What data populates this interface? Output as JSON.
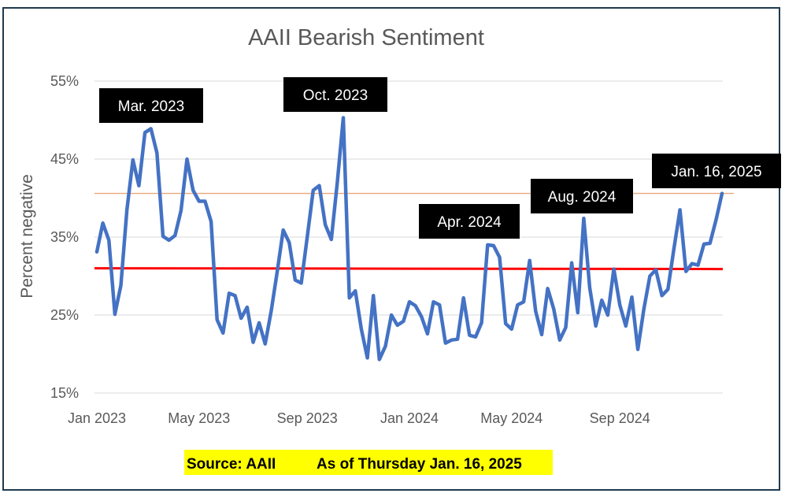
{
  "chart_data": {
    "type": "line",
    "title": "AAII Bearish Sentiment",
    "ylabel": "Percent negative",
    "xlabel": "",
    "ylim": [
      15,
      55
    ],
    "yticks": [
      15,
      25,
      35,
      45,
      55
    ],
    "ytick_labels": [
      "15%",
      "25%",
      "35%",
      "45%",
      "55%"
    ],
    "x_tick_labels": [
      "Jan 2023",
      "May 2023",
      "Sep 2023",
      "Jan 2024",
      "May 2024",
      "Sep 2024"
    ],
    "x_tick_index": [
      0,
      17,
      35,
      52,
      69,
      87
    ],
    "grid": "horizontal",
    "colors": {
      "series": "#4472c4",
      "average": "#ff0000",
      "reference": "#e8a87c",
      "callout_bg": "#000000",
      "source_bg": "#ffff00"
    },
    "series": [
      {
        "name": "AAII Bearish %",
        "values": [
          33.1,
          36.8,
          34.6,
          25.1,
          28.8,
          38.5,
          44.9,
          41.6,
          48.4,
          48.9,
          45.8,
          35.1,
          34.6,
          35.2,
          38.4,
          45.0,
          41.0,
          39.6,
          39.6,
          37.0,
          24.4,
          22.7,
          27.8,
          27.5,
          24.6,
          26.0,
          21.5,
          24.0,
          21.3,
          25.5,
          30.5,
          35.9,
          34.3,
          29.5,
          29.1,
          35.0,
          41.0,
          41.6,
          36.6,
          34.7,
          42.0,
          50.3,
          27.2,
          28.1,
          23.2,
          19.5,
          27.5,
          19.3,
          21.0,
          25.0,
          23.7,
          24.2,
          26.7,
          26.2,
          24.8,
          22.6,
          26.7,
          26.3,
          21.4,
          21.8,
          21.9,
          27.2,
          22.4,
          22.2,
          24.0,
          34.0,
          33.9,
          32.4,
          23.9,
          23.2,
          26.3,
          26.7,
          32.0,
          25.5,
          22.5,
          28.4,
          25.8,
          21.8,
          23.4,
          31.7,
          25.3,
          37.4,
          28.5,
          23.6,
          26.9,
          25.0,
          30.9,
          26.3,
          23.6,
          27.3,
          20.6,
          25.8,
          30.0,
          30.8,
          27.5,
          28.3,
          33.5,
          38.5,
          30.6,
          31.6,
          31.4,
          34.1,
          34.2,
          37.2,
          40.6
        ]
      }
    ],
    "average_line": {
      "start": 31.0,
      "end": 30.9
    },
    "reference_line": 40.6,
    "callouts": [
      {
        "label": "Mar. 2023",
        "index": 9
      },
      {
        "label": "Oct. 2023",
        "index": 41
      },
      {
        "label": "Apr.  2024",
        "index": 65
      },
      {
        "label": "Aug.  2024",
        "index": 81
      },
      {
        "label": "Jan. 16, 2025",
        "index": 104
      }
    ]
  },
  "footer": {
    "source": "Source: AAII",
    "as_of": "As of Thursday Jan. 16, 2025"
  }
}
